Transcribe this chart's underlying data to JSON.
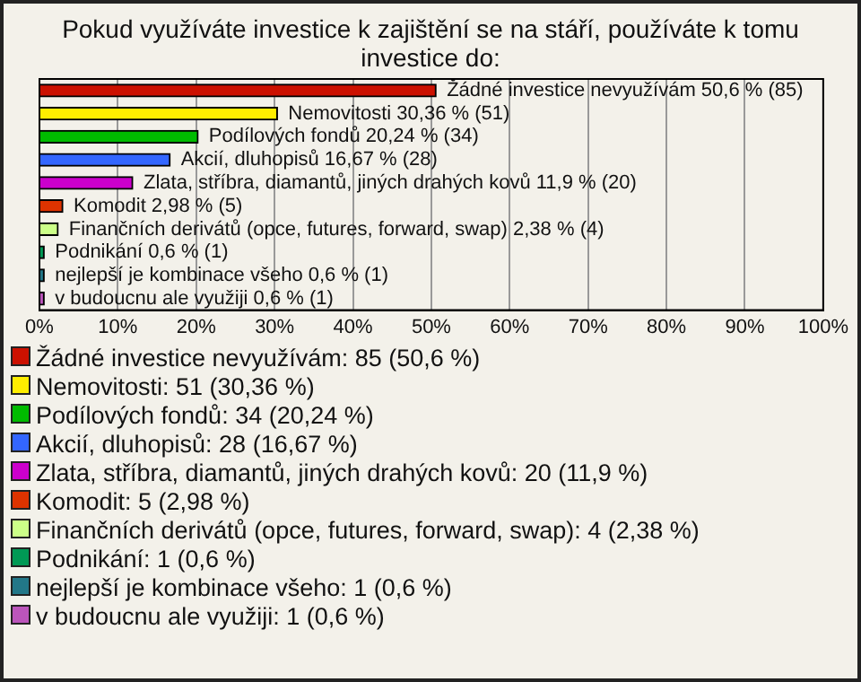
{
  "chart_data": {
    "type": "bar",
    "orientation": "horizontal",
    "title": "Pokud využíváte investice k zajištění se na stáří, používáte k tomu investice do:",
    "categories": [
      null,
      null,
      null,
      null,
      null,
      null,
      null,
      null,
      null,
      null
    ],
    "values": [
      50.6,
      30.36,
      20.24,
      16.67,
      11.9,
      2.98,
      2.38,
      0.6,
      0.6,
      0.6
    ],
    "value_labels": [
      "Žádné investice nevyužívám 50,6 % (85)",
      "Nemovitosti 30,36 % (51)",
      "Podílových fondů 20,24 % (34)",
      "Akcií, dluhopisů 16,67 % (28)",
      "Zlata, stříbra, diamantů, jiných drahých kovů 11,9 % (20)",
      "Komodit 2,98 % (5)",
      "Finančních derivátů (opce, futures, forward, swap) 2,38 % (4)",
      "Podnikání 0,6 % (1)",
      "nejlepší je kombinace všeho 0,6 % (1)",
      "v budoucnu ale využiji 0,6 % (1)"
    ],
    "colors": [
      "#cc1100",
      "#ffee00",
      "#00bb00",
      "#3366ff",
      "#cc00cc",
      "#dd3300",
      "#ccff88",
      "#009955",
      "#227788",
      "#bb55bb"
    ],
    "xlim": [
      0,
      100
    ],
    "xticks": [
      {
        "value": 0,
        "label": "0%"
      },
      {
        "value": 10,
        "label": "10%"
      },
      {
        "value": 20,
        "label": "20%"
      },
      {
        "value": 30,
        "label": "30%"
      },
      {
        "value": 40,
        "label": "40%"
      },
      {
        "value": 50,
        "label": "50%"
      },
      {
        "value": 60,
        "label": "60%"
      },
      {
        "value": 70,
        "label": "70%"
      },
      {
        "value": 80,
        "label": "80%"
      },
      {
        "value": 90,
        "label": "90%"
      },
      {
        "value": 100,
        "label": "100%"
      }
    ],
    "grid": "x",
    "tick_labels": "x",
    "annotations": [
      "Žádné investice nevyužívám: 85 (50,6 %)",
      "Nemovitosti: 51 (30,36 %)",
      "Podílových fondů: 34 (20,24 %)",
      "Akcií, dluhopisů: 28 (16,67 %)",
      "Zlata, stříbra, diamantů, jiných drahých kovů: 20 (11,9 %)",
      "Komodit: 5 (2,98 %)",
      "Finančních derivátů (opce, futures, forward, swap): 4 (2,38 %)",
      "Podnikání: 1 (0,6 %)",
      "nejlepší je kombinace všeho: 1 (0,6 %)",
      "v budoucnu ale využiji: 1 (0,6 %)"
    ]
  }
}
